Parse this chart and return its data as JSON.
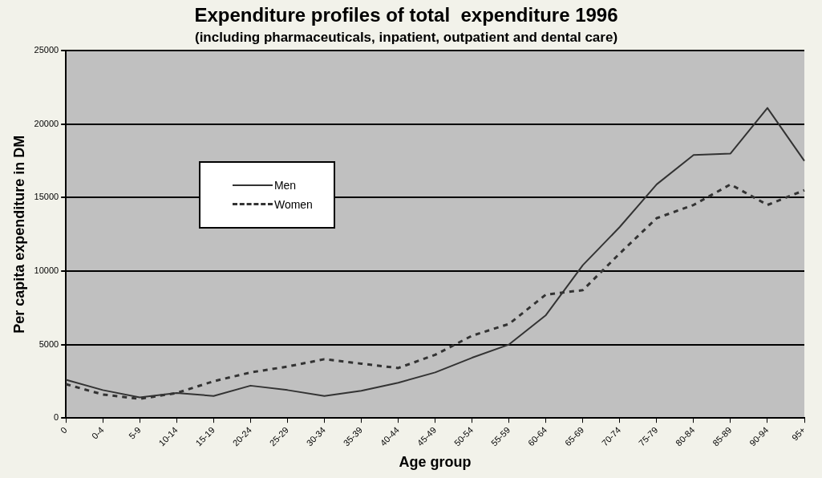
{
  "chart_data": {
    "type": "line",
    "title": "Expenditure profiles of total  expenditure 1996",
    "subtitle": "(including pharmaceuticals, inpatient, outpatient and dental care)",
    "xlabel": "Age group",
    "ylabel": "Per capita expenditure in DM",
    "categories": [
      "0",
      "0-4",
      "5-9",
      "10-14",
      "15-19",
      "20-24",
      "25-29",
      "30-34",
      "35-39",
      "40-44",
      "45-49",
      "50-54",
      "55-59",
      "60-64",
      "65-69",
      "70-74",
      "75-79",
      "80-84",
      "85-89",
      "90-94",
      "95+"
    ],
    "series": [
      {
        "name": "Men",
        "color": "#333333",
        "line_style": "solid",
        "values": [
          2600,
          1900,
          1400,
          1700,
          1500,
          2200,
          1900,
          1500,
          1850,
          2400,
          3100,
          4100,
          5000,
          7000,
          10400,
          13000,
          15900,
          17900,
          18000,
          21100,
          17500
        ]
      },
      {
        "name": "Women",
        "color": "#333333",
        "line_style": "dashed",
        "values": [
          2300,
          1600,
          1300,
          1700,
          2500,
          3100,
          3500,
          4000,
          3700,
          3400,
          4300,
          5600,
          6400,
          8400,
          8700,
          11200,
          13600,
          14500,
          15900,
          14500,
          15500
        ]
      }
    ],
    "ylim": [
      0,
      25000
    ],
    "yticks": [
      0,
      5000,
      10000,
      15000,
      20000,
      25000
    ],
    "grid": "y",
    "legend": "top left",
    "marker": "none"
  }
}
